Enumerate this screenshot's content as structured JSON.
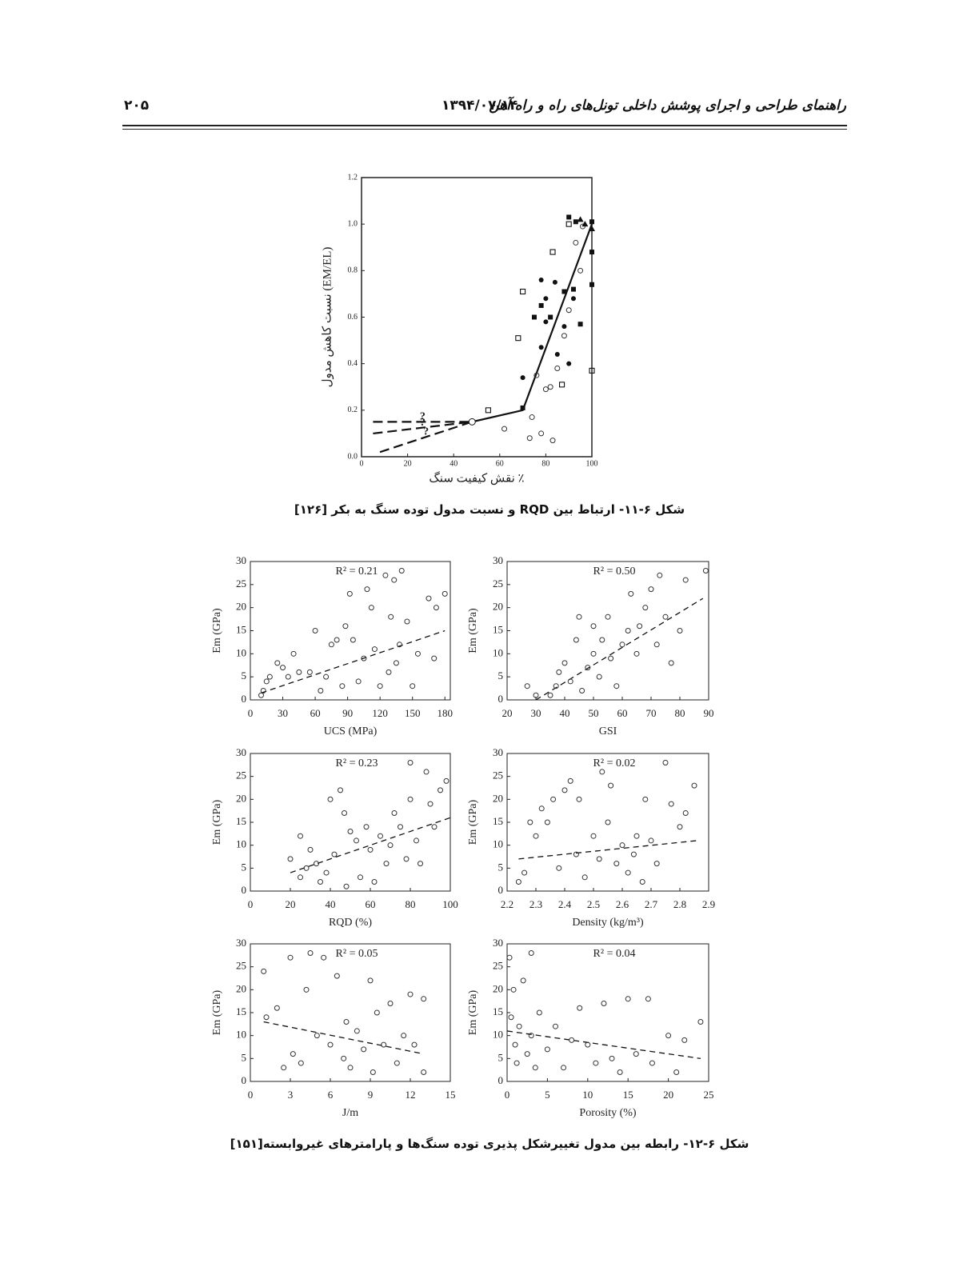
{
  "header": {
    "title": "راهنمای طراحی و اجرای پوشش داخلی تونل‌های راه و راه آهن",
    "date": "۱۳۹۴/۰۷/۱۴",
    "page": "۲۰۵"
  },
  "captions": [
    "شکل ۶-۱۱- ارتباط بین RQD و نسبت مدول توده سنگ به بکر [۱۲۶]",
    "شکل ۶-۱۲- رابطه بین مدول تغییرشکل پذیری توده سنگ‌ها و پارامترهای غیروابسته[۱۵۱]"
  ],
  "chart_data": [
    {
      "type": "scatter",
      "x_label": "نقش کیفیت سنگ ٪",
      "y_label": "نسبت کاهش مدول (EM/EL)",
      "xlim": [
        0,
        100
      ],
      "xticks": [
        0,
        20,
        40,
        60,
        80,
        100
      ],
      "ylim": [
        0,
        1.2
      ],
      "yticks": [
        {
          "value": 0,
          "label": "0.0"
        },
        0.2,
        0.4,
        0.6,
        0.8,
        {
          "value": 1,
          "label": "1.0"
        },
        1.2
      ],
      "series": [
        {
          "marker": "square-filled",
          "x": [
            90,
            93,
            100,
            100,
            100,
            92,
            78,
            75,
            82,
            95,
            70,
            88
          ],
          "values": [
            1.03,
            1.01,
            1.01,
            0.88,
            0.74,
            0.72,
            0.65,
            0.6,
            0.6,
            0.57,
            0.21,
            0.71
          ]
        },
        {
          "marker": "square-open",
          "x": [
            70,
            68,
            55,
            90,
            100,
            83,
            87
          ],
          "values": [
            0.71,
            0.51,
            0.2,
            1.0,
            0.37,
            0.88,
            0.31
          ]
        },
        {
          "marker": "circle-filled",
          "x": [
            70,
            78,
            80,
            80,
            85,
            88,
            90,
            92,
            84,
            78
          ],
          "values": [
            0.34,
            0.47,
            0.58,
            0.68,
            0.44,
            0.56,
            0.4,
            0.68,
            0.75,
            0.76
          ]
        },
        {
          "marker": "circle-open",
          "x": [
            62,
            73,
            74,
            78,
            80,
            83,
            85,
            88,
            90,
            93,
            95,
            96,
            82,
            76
          ],
          "values": [
            0.12,
            0.08,
            0.17,
            0.1,
            0.29,
            0.07,
            0.38,
            0.52,
            0.63,
            0.92,
            0.8,
            0.99,
            0.3,
            0.35
          ]
        },
        {
          "marker": "triangle",
          "x": [
            95,
            97,
            100
          ],
          "values": [
            1.02,
            1.0,
            0.98
          ]
        }
      ],
      "lines": [
        {
          "style": "solid",
          "x": [
            48,
            70,
            100
          ],
          "values": [
            0.15,
            0.2,
            1.0
          ]
        },
        {
          "style": "dashed",
          "label": "?",
          "x": [
            5,
            48
          ],
          "values": [
            0.15,
            0.15
          ]
        },
        {
          "style": "dashed",
          "label": "?",
          "x": [
            5,
            48
          ],
          "values": [
            0.1,
            0.15
          ]
        },
        {
          "style": "dashed",
          "label": "?",
          "x": [
            8,
            48
          ],
          "values": [
            0.02,
            0.15
          ]
        }
      ]
    },
    {
      "type": "scatter",
      "x_label": "UCS (MPa)",
      "y_label": "Em (GPa)",
      "annotation": "R² = 0.21",
      "xlim": [
        0,
        185
      ],
      "xticks": [
        0,
        30,
        60,
        90,
        120,
        150,
        180
      ],
      "ylim": [
        0,
        30
      ],
      "yticks": [
        0,
        5,
        10,
        15,
        20,
        25,
        30
      ],
      "series": [
        {
          "marker": "circle-open",
          "x": [
            10,
            12,
            15,
            18,
            25,
            30,
            35,
            40,
            45,
            55,
            60,
            65,
            70,
            75,
            80,
            85,
            88,
            92,
            95,
            100,
            105,
            108,
            112,
            115,
            120,
            125,
            128,
            130,
            133,
            135,
            138,
            140,
            145,
            150,
            155,
            165,
            170,
            172,
            180
          ],
          "values": [
            1,
            2,
            4,
            5,
            8,
            7,
            5,
            10,
            6,
            6,
            15,
            2,
            5,
            12,
            13,
            3,
            16,
            23,
            13,
            4,
            9,
            24,
            20,
            11,
            3,
            27,
            6,
            18,
            26,
            8,
            12,
            28,
            17,
            3,
            10,
            22,
            9,
            20,
            23
          ]
        }
      ],
      "lines": [
        {
          "style": "dashed",
          "x": [
            10,
            180
          ],
          "values": [
            1.5,
            15
          ]
        }
      ]
    },
    {
      "type": "scatter",
      "x_label": "GSI",
      "y_label": "Em (GPa)",
      "annotation": "R² = 0.50",
      "xlim": [
        20,
        90
      ],
      "xticks": [
        20,
        30,
        40,
        50,
        60,
        70,
        80,
        90
      ],
      "ylim": [
        0,
        30
      ],
      "yticks": [
        0,
        5,
        10,
        15,
        20,
        25,
        30
      ],
      "series": [
        {
          "marker": "circle-open",
          "x": [
            27,
            30,
            35,
            37,
            38,
            40,
            42,
            44,
            45,
            46,
            48,
            50,
            50,
            52,
            53,
            55,
            56,
            58,
            60,
            62,
            63,
            65,
            66,
            68,
            70,
            72,
            73,
            75,
            77,
            80,
            82,
            89
          ],
          "values": [
            3,
            1,
            1,
            3,
            6,
            8,
            4,
            13,
            18,
            2,
            7,
            16,
            10,
            5,
            13,
            18,
            9,
            3,
            12,
            15,
            23,
            10,
            16,
            20,
            24,
            12,
            27,
            18,
            8,
            15,
            26,
            28
          ]
        }
      ],
      "lines": [
        {
          "style": "dashed",
          "x": [
            30,
            88
          ],
          "values": [
            0,
            22
          ]
        }
      ]
    },
    {
      "type": "scatter",
      "x_label": "RQD (%)",
      "y_label": "Em (GPa)",
      "annotation": "R² = 0.23",
      "xlim": [
        0,
        100
      ],
      "xticks": [
        0,
        20,
        40,
        60,
        80,
        100
      ],
      "ylim": [
        0,
        30
      ],
      "yticks": [
        0,
        5,
        10,
        15,
        20,
        25,
        30
      ],
      "series": [
        {
          "marker": "circle-open",
          "x": [
            20,
            25,
            25,
            28,
            30,
            33,
            35,
            38,
            40,
            42,
            45,
            47,
            48,
            50,
            53,
            55,
            58,
            60,
            62,
            65,
            68,
            70,
            72,
            75,
            78,
            80,
            80,
            83,
            85,
            88,
            90,
            92,
            95,
            98
          ],
          "values": [
            7,
            3,
            12,
            5,
            9,
            6,
            2,
            4,
            20,
            8,
            22,
            17,
            1,
            13,
            11,
            3,
            14,
            9,
            2,
            12,
            6,
            10,
            17,
            14,
            7,
            28,
            20,
            11,
            6,
            26,
            19,
            14,
            22,
            24
          ]
        }
      ],
      "lines": [
        {
          "style": "dashed",
          "x": [
            20,
            100
          ],
          "values": [
            4,
            16
          ]
        }
      ]
    },
    {
      "type": "scatter",
      "x_label": "Density (kg/m³)",
      "y_label": "Em (GPa)",
      "annotation": "R² = 0.02",
      "xlim": [
        2.2,
        2.9
      ],
      "xticks": [
        2.2,
        2.3,
        2.4,
        2.5,
        2.6,
        2.7,
        2.8,
        2.9
      ],
      "ylim": [
        0,
        30
      ],
      "yticks": [
        0,
        5,
        10,
        15,
        20,
        25,
        30
      ],
      "series": [
        {
          "marker": "circle-open",
          "x": [
            2.24,
            2.26,
            2.28,
            2.3,
            2.32,
            2.34,
            2.36,
            2.38,
            2.4,
            2.42,
            2.44,
            2.45,
            2.47,
            2.5,
            2.52,
            2.53,
            2.55,
            2.56,
            2.58,
            2.6,
            2.62,
            2.64,
            2.65,
            2.67,
            2.68,
            2.7,
            2.72,
            2.75,
            2.77,
            2.8,
            2.82,
            2.85
          ],
          "values": [
            2,
            4,
            15,
            12,
            18,
            15,
            20,
            5,
            22,
            24,
            8,
            20,
            3,
            12,
            7,
            26,
            15,
            23,
            6,
            10,
            4,
            8,
            12,
            2,
            20,
            11,
            6,
            28,
            19,
            14,
            17,
            23
          ]
        }
      ],
      "lines": [
        {
          "style": "dashed",
          "x": [
            2.24,
            2.86
          ],
          "values": [
            7,
            11
          ]
        }
      ]
    },
    {
      "type": "scatter",
      "x_label": "J/m",
      "y_label": "Em (GPa)",
      "annotation": "R² = 0.05",
      "xlim": [
        0,
        15
      ],
      "xticks": [
        0,
        3,
        6,
        9,
        12,
        15
      ],
      "ylim": [
        0,
        30
      ],
      "yticks": [
        0,
        5,
        10,
        15,
        20,
        25,
        30
      ],
      "series": [
        {
          "marker": "circle-open",
          "x": [
            1,
            1.2,
            2,
            2.5,
            3,
            3.2,
            3.8,
            4.2,
            4.5,
            5,
            5.5,
            6,
            6.5,
            7,
            7.2,
            7.5,
            8,
            8.5,
            9,
            9.2,
            9.5,
            10,
            10.5,
            11,
            11.5,
            12,
            12.3,
            13,
            13
          ],
          "values": [
            24,
            14,
            16,
            3,
            27,
            6,
            4,
            20,
            28,
            10,
            27,
            8,
            23,
            5,
            13,
            3,
            11,
            7,
            22,
            2,
            15,
            8,
            17,
            4,
            10,
            19,
            8,
            18,
            2
          ]
        }
      ],
      "lines": [
        {
          "style": "dashed",
          "x": [
            1,
            13
          ],
          "values": [
            13,
            6
          ]
        }
      ]
    },
    {
      "type": "scatter",
      "x_label": "Porosity (%)",
      "y_label": "Em (GPa)",
      "annotation": "R² = 0.04",
      "xlim": [
        0,
        25
      ],
      "xticks": [
        0,
        5,
        10,
        15,
        20,
        25
      ],
      "ylim": [
        0,
        30
      ],
      "yticks": [
        0,
        5,
        10,
        15,
        20,
        25,
        30
      ],
      "series": [
        {
          "marker": "circle-open",
          "x": [
            0.3,
            0.5,
            0.8,
            1,
            1.2,
            1.5,
            2,
            2.5,
            3,
            3,
            3.5,
            4,
            5,
            6,
            7,
            8,
            9,
            10,
            11,
            12,
            13,
            14,
            15,
            16,
            17.5,
            18,
            20,
            21,
            22,
            24
          ],
          "values": [
            27,
            14,
            20,
            8,
            4,
            12,
            22,
            6,
            28,
            10,
            3,
            15,
            7,
            12,
            3,
            9,
            16,
            8,
            4,
            17,
            5,
            2,
            18,
            6,
            18,
            4,
            10,
            2,
            9,
            13
          ]
        }
      ],
      "lines": [
        {
          "style": "dashed",
          "x": [
            0,
            24
          ],
          "values": [
            11,
            5
          ]
        }
      ]
    }
  ]
}
